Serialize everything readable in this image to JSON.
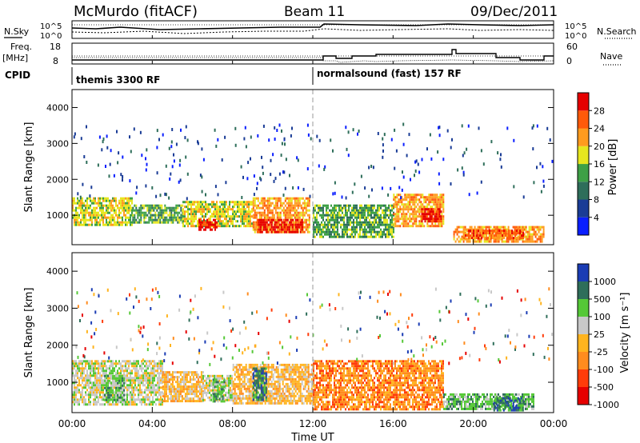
{
  "header": {
    "station": "McMurdo (fitACF)",
    "beam": "Beam 11",
    "date": "09/Dec/2011"
  },
  "noise_panel": {
    "left_label": "N.Sky",
    "right_label": "N.Search",
    "left_ticks": [
      "10^5",
      "10^0"
    ],
    "right_ticks": [
      "10^5",
      "10^0"
    ]
  },
  "freq_panel": {
    "left_label_1": "Freq.",
    "left_label_2": "[MHz]",
    "right_label": "Nave",
    "left_ticks": [
      "18",
      "8"
    ],
    "right_ticks": [
      "60",
      "0"
    ]
  },
  "cpid": {
    "label": "CPID",
    "modes": [
      {
        "name": "themis 3300 RF",
        "start": 0
      },
      {
        "name": "normalsound (fast) 157 RF",
        "start": 12
      }
    ]
  },
  "colors": {
    "power_scale": [
      "#0a1eff",
      "#1a3c96",
      "#2e6e5a",
      "#3ea046",
      "#e6e61e",
      "#ff9b1e",
      "#ff5a0a",
      "#e60000"
    ],
    "velocity_scale": [
      "#1a3cb4",
      "#2e6e5a",
      "#55c837",
      "#c8c8c8",
      "#ffb41e",
      "#ff8c1e",
      "#ff3c0a",
      "#e60000"
    ]
  },
  "chart_data": [
    {
      "type": "heatmap",
      "title": "Power",
      "xlabel": "",
      "ylabel": "Slant Range [km]",
      "xlim": [
        0,
        24
      ],
      "ylim": [
        180,
        4500
      ],
      "yticks": [
        "1000",
        "2000",
        "3000",
        "4000"
      ],
      "colorbar_label": "Power [dB]",
      "colorbar_ticks": [
        "4",
        "8",
        "12",
        "16",
        "20",
        "24",
        "28"
      ],
      "regions": [
        {
          "t0": 0.0,
          "t1": 3.0,
          "r0": 700,
          "r1": 1500,
          "level": 4
        },
        {
          "t0": 3.0,
          "t1": 5.5,
          "r0": 800,
          "r1": 1300,
          "level": 3
        },
        {
          "t0": 5.5,
          "t1": 9.0,
          "r0": 700,
          "r1": 1400,
          "level": 4
        },
        {
          "t0": 6.3,
          "t1": 7.2,
          "r0": 600,
          "r1": 900,
          "level": 7
        },
        {
          "t0": 9.0,
          "t1": 11.8,
          "r0": 500,
          "r1": 1500,
          "level": 5
        },
        {
          "t0": 9.2,
          "t1": 11.5,
          "r0": 500,
          "r1": 900,
          "level": 7
        },
        {
          "t0": 12.0,
          "t1": 16.0,
          "r0": 400,
          "r1": 1300,
          "level": 3
        },
        {
          "t0": 16.0,
          "t1": 18.5,
          "r0": 700,
          "r1": 1600,
          "level": 5
        },
        {
          "t0": 17.4,
          "t1": 18.4,
          "r0": 800,
          "r1": 1200,
          "level": 7
        },
        {
          "t0": 19.0,
          "t1": 23.5,
          "r0": 250,
          "r1": 700,
          "level": 5
        },
        {
          "t0": 19.5,
          "t1": 22.5,
          "r0": 350,
          "r1": 600,
          "level": 6
        }
      ]
    },
    {
      "type": "heatmap",
      "title": "Velocity",
      "xlabel": "Time UT",
      "ylabel": "Slant Range [km]",
      "xlim": [
        0,
        24
      ],
      "ylim": [
        180,
        4500
      ],
      "yticks": [
        "1000",
        "2000",
        "3000",
        "4000"
      ],
      "xticks": [
        "00:00",
        "04:00",
        "08:00",
        "12:00",
        "16:00",
        "20:00",
        "00:00"
      ],
      "colorbar_label": "Velocity [m s⁻¹]",
      "colorbar_ticks": [
        "1000",
        "500",
        "100",
        "25",
        "-25",
        "-100",
        "-500",
        "-1000"
      ],
      "regions": [
        {
          "t0": 0.0,
          "t1": 4.5,
          "r0": 400,
          "r1": 1600,
          "level": 3
        },
        {
          "t0": 1.6,
          "t1": 2.6,
          "r0": 500,
          "r1": 1200,
          "level": 2
        },
        {
          "t0": 4.5,
          "t1": 6.5,
          "r0": 500,
          "r1": 1300,
          "level": 4
        },
        {
          "t0": 6.5,
          "t1": 8.0,
          "r0": 500,
          "r1": 1200,
          "level": 3
        },
        {
          "t0": 7.0,
          "t1": 7.6,
          "r0": 500,
          "r1": 1100,
          "level": 2
        },
        {
          "t0": 8.0,
          "t1": 12.0,
          "r0": 400,
          "r1": 1500,
          "level": 4
        },
        {
          "t0": 9.0,
          "t1": 9.7,
          "r0": 500,
          "r1": 1400,
          "level": 1
        },
        {
          "t0": 12.0,
          "t1": 18.5,
          "r0": 300,
          "r1": 1600,
          "level": 5
        },
        {
          "t0": 18.5,
          "t1": 23.0,
          "r0": 250,
          "r1": 700,
          "level": 2
        },
        {
          "t0": 21.0,
          "t1": 22.5,
          "r0": 250,
          "r1": 600,
          "level": 1
        }
      ]
    }
  ]
}
